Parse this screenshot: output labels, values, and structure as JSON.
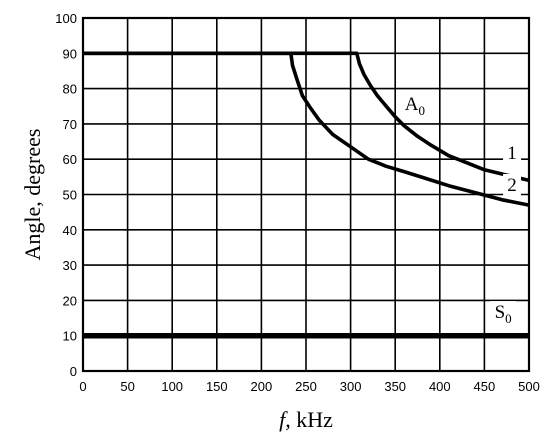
{
  "chart_data": {
    "type": "line",
    "xlabel_italic": "f",
    "xlabel_rest": ", kHz",
    "ylabel": "Angle, degrees",
    "xlim": [
      0,
      500
    ],
    "ylim": [
      0,
      100
    ],
    "x_ticks": [
      0,
      50,
      100,
      150,
      200,
      250,
      300,
      350,
      400,
      450,
      500
    ],
    "y_ticks": [
      0,
      10,
      20,
      30,
      40,
      50,
      60,
      70,
      80,
      90,
      100
    ],
    "grid": true,
    "series": [
      {
        "name": "1",
        "x": [
          0,
          307,
          307,
          310,
          315,
          322,
          330,
          340,
          350,
          360,
          375,
          390,
          410,
          430,
          450,
          475,
          500
        ],
        "y": [
          90,
          90,
          90,
          87,
          84,
          81,
          78,
          75,
          72,
          69.5,
          66.5,
          64,
          61,
          59,
          57,
          55.5,
          54
        ]
      },
      {
        "name": "2",
        "x": [
          0,
          233,
          233,
          235,
          240,
          246,
          255,
          265,
          280,
          300,
          320,
          340,
          360,
          385,
          410,
          440,
          470,
          500
        ],
        "y": [
          90,
          90,
          90,
          86.5,
          82.5,
          78,
          74.5,
          71,
          67,
          63.5,
          60,
          58,
          56.5,
          54.5,
          52.5,
          50.5,
          48.5,
          47
        ]
      },
      {
        "name": "S0",
        "x": [
          0,
          500
        ],
        "y": [
          10,
          10
        ]
      }
    ],
    "annotations": [
      {
        "main": "A",
        "sub": "0",
        "x": 372,
        "y": 74
      },
      {
        "main": "1",
        "sub": "",
        "x": 481,
        "y": 60
      },
      {
        "main": "2",
        "sub": "",
        "x": 481,
        "y": 51
      },
      {
        "main": "S",
        "sub": "0",
        "x": 471,
        "y": 15
      }
    ]
  }
}
